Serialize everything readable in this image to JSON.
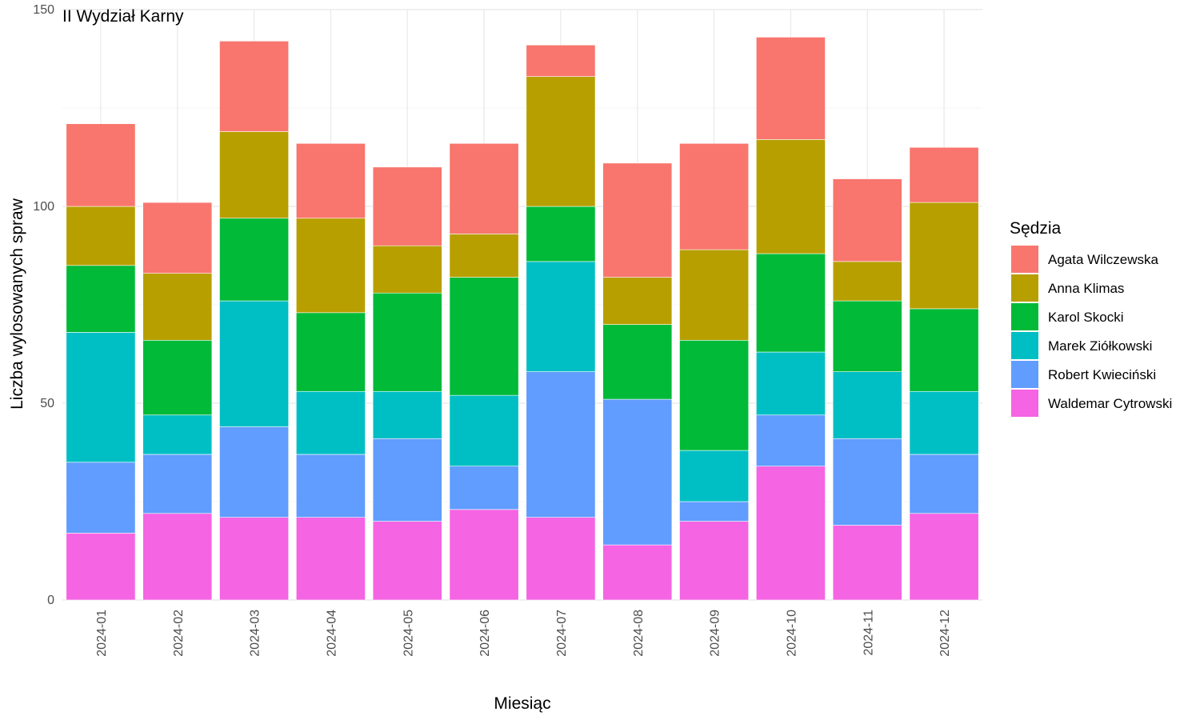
{
  "chart_data": {
    "type": "bar",
    "stacked": true,
    "title": "II Wydział Karny",
    "xlabel": "Miesiąc",
    "ylabel": "Liczba wylosowanych spraw",
    "ylim": [
      0,
      150
    ],
    "yticks": [
      0,
      50,
      100,
      150
    ],
    "grid": true,
    "legend": {
      "title": "Sędzia",
      "position": "right"
    },
    "categories": [
      "2024-01",
      "2024-02",
      "2024-03",
      "2024-04",
      "2024-05",
      "2024-06",
      "2024-07",
      "2024-08",
      "2024-09",
      "2024-10",
      "2024-11",
      "2024-12"
    ],
    "series": [
      {
        "name": "Waldemar Cytrowski",
        "color": "#F564E3",
        "values": [
          17,
          22,
          21,
          21,
          20,
          23,
          21,
          14,
          20,
          34,
          19,
          22
        ]
      },
      {
        "name": "Robert Kwieciński",
        "color": "#619CFF",
        "values": [
          18,
          15,
          23,
          16,
          21,
          11,
          37,
          37,
          5,
          13,
          22,
          15
        ]
      },
      {
        "name": "Marek Ziółkowski",
        "color": "#00BFC4",
        "values": [
          33,
          10,
          32,
          16,
          12,
          18,
          28,
          0,
          13,
          16,
          17,
          16
        ]
      },
      {
        "name": "Karol Skocki",
        "color": "#00BA38",
        "values": [
          17,
          19,
          21,
          20,
          25,
          30,
          14,
          19,
          28,
          25,
          18,
          21
        ]
      },
      {
        "name": "Anna Klimas",
        "color": "#B79F00",
        "values": [
          15,
          17,
          22,
          24,
          12,
          11,
          33,
          12,
          23,
          29,
          10,
          27
        ]
      },
      {
        "name": "Agata Wilczewska",
        "color": "#F8766D",
        "values": [
          21,
          18,
          23,
          19,
          20,
          23,
          8,
          29,
          27,
          26,
          21,
          14
        ]
      }
    ],
    "legend_order": [
      "Agata Wilczewska",
      "Anna Klimas",
      "Karol Skocki",
      "Marek Ziółkowski",
      "Robert Kwieciński",
      "Waldemar Cytrowski"
    ]
  }
}
